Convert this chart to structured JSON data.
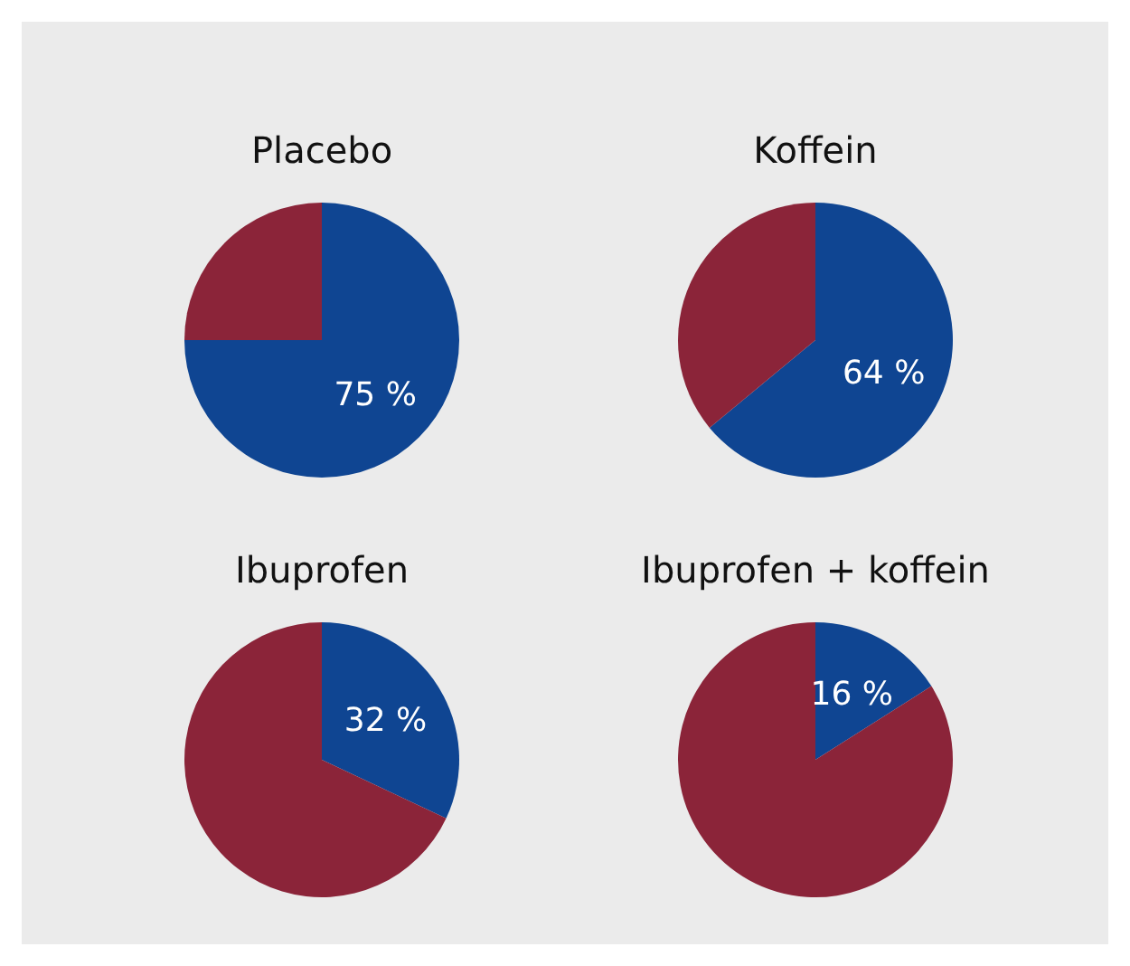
{
  "chart_data": [
    {
      "type": "pie",
      "title": "Placebo",
      "categories": [
        null,
        null
      ],
      "values": [
        75,
        25
      ],
      "colors": [
        "#0f4592",
        "#8b2439"
      ],
      "value_labels": [
        "75 %",
        null
      ]
    },
    {
      "type": "pie",
      "title": "Koffein",
      "categories": [
        null,
        null
      ],
      "values": [
        64,
        36
      ],
      "colors": [
        "#0f4592",
        "#8b2439"
      ],
      "value_labels": [
        "64 %",
        null
      ]
    },
    {
      "type": "pie",
      "title": "Ibuprofen",
      "categories": [
        null,
        null
      ],
      "values": [
        32,
        68
      ],
      "colors": [
        "#0f4592",
        "#8b2439"
      ],
      "value_labels": [
        "32 %",
        null
      ]
    },
    {
      "type": "pie",
      "title": "Ibuprofen + koffein",
      "categories": [
        null,
        null
      ],
      "values": [
        16,
        84
      ],
      "colors": [
        "#0f4592",
        "#8b2439"
      ],
      "value_labels": [
        "16 %",
        null
      ]
    }
  ]
}
